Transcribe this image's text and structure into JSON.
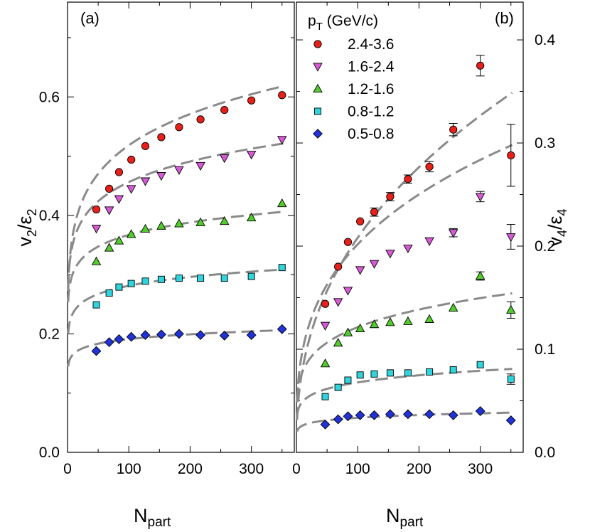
{
  "chart_data": [
    {
      "type": "scatter",
      "panel_label": "(a)",
      "xlabel_main": "N",
      "xlabel_sub": "part",
      "ylabel_main": "v",
      "ylabel_sub1": "2",
      "ylabel_div": "/ε",
      "ylabel_sub2": "2",
      "xlim": [
        0,
        370
      ],
      "ylim": [
        0,
        0.76
      ],
      "xticks": [
        0,
        100,
        200,
        300
      ],
      "xtick_labels": [
        "0",
        "100",
        "200",
        "300"
      ],
      "yticks": [
        0,
        0.2,
        0.4,
        0.6
      ],
      "ytick_labels": [
        "0.0",
        "0.2",
        "0.4",
        "0.6"
      ],
      "x": [
        47,
        68,
        84,
        104,
        127,
        153,
        182,
        217,
        256,
        300,
        350
      ],
      "series": [
        {
          "name": "2.4-3.6",
          "marker": "circle",
          "color": "#e8201a",
          "values": [
            0.41,
            0.445,
            0.473,
            0.494,
            0.517,
            0.532,
            0.549,
            0.562,
            0.578,
            0.594,
            0.603
          ],
          "fit_a": 0.272,
          "fit_p": 0.14
        },
        {
          "name": "1.6-2.4",
          "marker": "triangle-down",
          "color": "#d65ad6",
          "values": [
            0.378,
            0.409,
            0.428,
            0.445,
            0.458,
            0.467,
            0.477,
            0.484,
            0.497,
            0.503,
            0.528
          ],
          "fit_a": 0.28,
          "fit_p": 0.106
        },
        {
          "name": "1.2-1.6",
          "marker": "triangle-up",
          "color": "#52cc2c",
          "values": [
            0.322,
            0.345,
            0.357,
            0.368,
            0.377,
            0.382,
            0.386,
            0.388,
            0.39,
            0.396,
            0.42
          ],
          "fit_a": 0.254,
          "fit_p": 0.08
        },
        {
          "name": "0.8-1.2",
          "marker": "square",
          "color": "#2fd4dc",
          "values": [
            0.249,
            0.269,
            0.279,
            0.285,
            0.289,
            0.292,
            0.294,
            0.294,
            0.294,
            0.297,
            0.312
          ],
          "fit_a": 0.2,
          "fit_p": 0.074
        },
        {
          "name": "0.5-0.8",
          "marker": "diamond",
          "color": "#2032d8",
          "values": [
            0.171,
            0.186,
            0.191,
            0.195,
            0.198,
            0.199,
            0.2,
            0.198,
            0.197,
            0.198,
            0.208
          ],
          "fit_a": 0.145,
          "fit_p": 0.06
        }
      ]
    },
    {
      "type": "scatter",
      "panel_label": "(b)",
      "xlabel_main": "N",
      "xlabel_sub": "part",
      "ylabel_main": "v",
      "ylabel_sub1": "4",
      "ylabel_div": "/ε",
      "ylabel_sub2": "4",
      "xlim": [
        0,
        370
      ],
      "ylim": [
        0,
        0.4366
      ],
      "xticks": [
        0,
        100,
        200,
        300
      ],
      "xtick_labels": [
        "0",
        "100",
        "200",
        "300"
      ],
      "yticks": [
        0,
        0.1,
        0.2,
        0.3,
        0.4
      ],
      "ytick_labels": [
        "0.0",
        "0.1",
        "0.2",
        "0.3",
        "0.4"
      ],
      "x": [
        47,
        68,
        84,
        104,
        127,
        153,
        182,
        217,
        256,
        300,
        350
      ],
      "legend_title_main": "p",
      "legend_title_sub": "T",
      "legend_title_rest": " (GeV/c)",
      "legend_position": "top-left",
      "series": [
        {
          "name": "2.4-3.6",
          "marker": "circle",
          "color": "#e8201a",
          "values": [
            0.144,
            0.18,
            0.204,
            0.224,
            0.233,
            0.248,
            0.265,
            0.277,
            0.313,
            0.375,
            0.288
          ],
          "errors": [
            0.003,
            0.003,
            0.003,
            0.003,
            0.004,
            0.004,
            0.004,
            0.005,
            0.006,
            0.01,
            0.03
          ],
          "fit_a": 0.0315,
          "fit_p": 0.41
        },
        {
          "name": "1.6-2.4",
          "marker": "triangle-down",
          "color": "#d65ad6",
          "values": [
            0.123,
            0.146,
            0.157,
            0.177,
            0.183,
            0.193,
            0.198,
            0.205,
            0.213,
            0.248,
            0.209
          ],
          "errors": [
            0.002,
            0.002,
            0.002,
            0.002,
            0.003,
            0.003,
            0.003,
            0.003,
            0.004,
            0.005,
            0.012
          ],
          "fit_a": 0.0484,
          "fit_p": 0.31
        },
        {
          "name": "1.2-1.6",
          "marker": "triangle-up",
          "color": "#52cc2c",
          "values": [
            0.086,
            0.106,
            0.116,
            0.12,
            0.124,
            0.126,
            0.127,
            0.129,
            0.14,
            0.171,
            0.138
          ],
          "errors": [
            0.002,
            0.002,
            0.002,
            0.002,
            0.002,
            0.002,
            0.002,
            0.002,
            0.003,
            0.004,
            0.008
          ],
          "fit_a": 0.0506,
          "fit_p": 0.19
        },
        {
          "name": "0.8-1.2",
          "marker": "square",
          "color": "#2fd4dc",
          "values": [
            0.054,
            0.063,
            0.07,
            0.075,
            0.076,
            0.077,
            0.077,
            0.078,
            0.08,
            0.085,
            0.071
          ],
          "errors": [
            0.002,
            0.002,
            0.002,
            0.002,
            0.002,
            0.002,
            0.002,
            0.002,
            0.002,
            0.003,
            0.005
          ],
          "fit_a": 0.0356,
          "fit_p": 0.14
        },
        {
          "name": "0.5-0.8",
          "marker": "diamond",
          "color": "#2032d8",
          "values": [
            0.027,
            0.032,
            0.035,
            0.036,
            0.036,
            0.037,
            0.037,
            0.037,
            0.036,
            0.04,
            0.031
          ],
          "errors": [
            0.001,
            0.001,
            0.001,
            0.001,
            0.001,
            0.001,
            0.001,
            0.001,
            0.001,
            0.002,
            0.003
          ],
          "fit_a": 0.0202,
          "fit_p": 0.11
        }
      ]
    }
  ]
}
